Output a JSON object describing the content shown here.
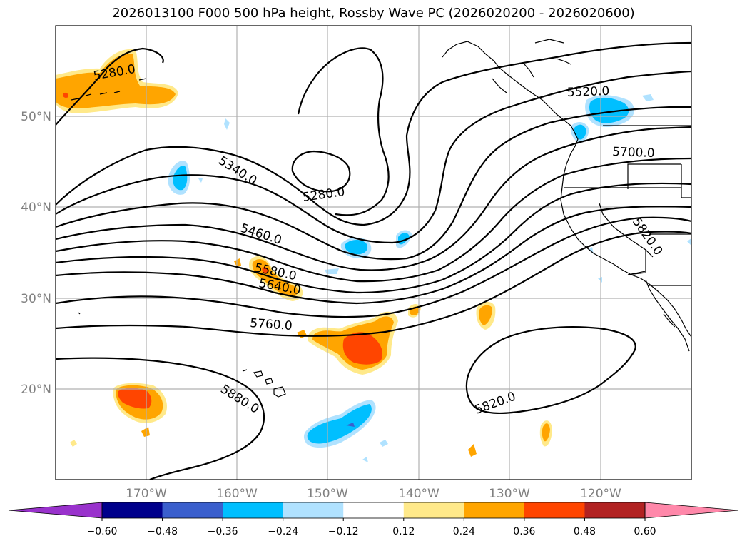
{
  "title": "2026013100 F000 500 hPa height, Rossby Wave PC (2026020200 - 2026020600)",
  "map": {
    "lat_labels": [
      "50°N",
      "40°N",
      "30°N",
      "20°N"
    ],
    "lon_labels": [
      "170°W",
      "160°W",
      "150°W",
      "140°W",
      "130°W",
      "120°W"
    ],
    "contour_labels": [
      "5280.0",
      "5340.0",
      "5280.0",
      "5460.0",
      "5580.0",
      "5640.0",
      "5760.0",
      "5880.0",
      "5520.0",
      "5700.0",
      "5820.0",
      "5820.0"
    ],
    "gridlines": true
  },
  "colorbar": {
    "ticks": [
      "−0.60",
      "−0.48",
      "−0.36",
      "−0.24",
      "−0.12",
      "0.12",
      "0.24",
      "0.36",
      "0.48",
      "0.60"
    ],
    "colors": [
      "#9932CC",
      "#00008B",
      "#3A5FCD",
      "#00BFFF",
      "#B0E2FF",
      "#FFFFFF",
      "#FFE98A",
      "#FFA500",
      "#FF4500",
      "#B22222",
      "#FF88AA"
    ],
    "extend": "both"
  }
}
